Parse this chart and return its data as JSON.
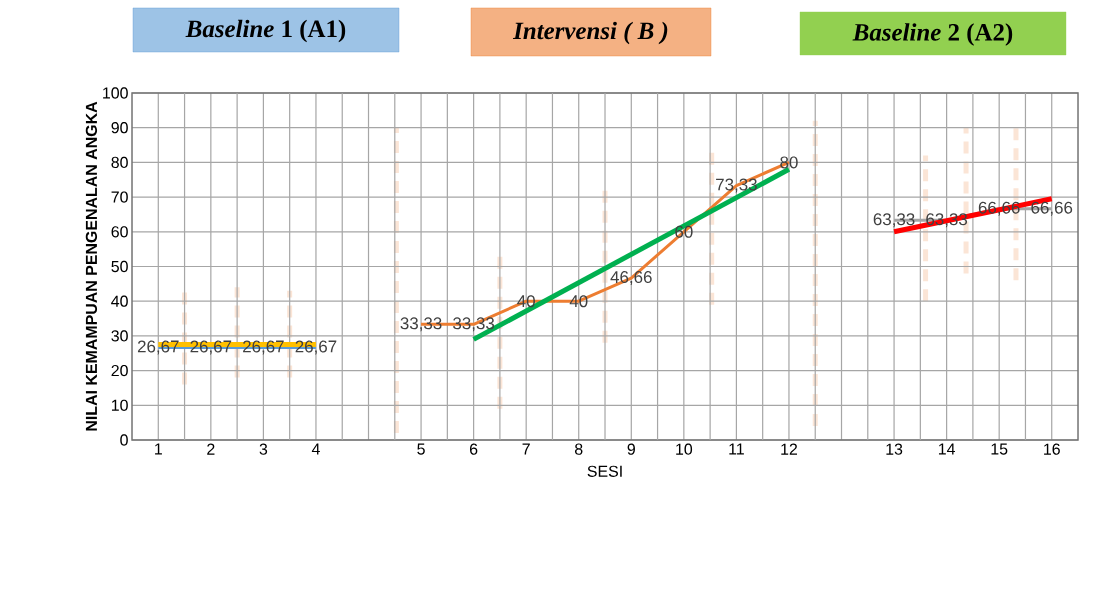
{
  "chart_data": {
    "type": "line",
    "xlabel": "SESI",
    "ylabel": "NILAI KEMAMPUAN PENGENALAN ANGKA",
    "annotations": [
      "*Baseline* 1 (A1)",
      "Intervensi ( B )",
      "*Baseline* 2 (A2)"
    ],
    "categories": [
      "1",
      "2",
      "3",
      "4",
      null,
      "5",
      "6",
      "7",
      "8",
      "9",
      "10",
      "11",
      "12",
      null,
      "13",
      "14",
      "15",
      "16"
    ],
    "ylim": [
      0,
      100
    ],
    "yticks": [
      0,
      10,
      20,
      30,
      40,
      50,
      60,
      70,
      80,
      90,
      100
    ],
    "grid": true,
    "marker": "none",
    "series": [
      {
        "color": "#5b9bd5",
        "values": [
          26.67,
          26.67,
          26.67,
          26.67,
          null,
          null,
          null,
          null,
          null,
          null,
          null,
          null,
          null,
          null,
          null,
          null,
          null,
          null
        ],
        "value_labels": [
          "26,67",
          "26,67",
          "26,67",
          "26,67",
          null,
          null,
          null,
          null,
          null,
          null,
          null,
          null,
          null,
          null,
          null,
          null,
          null,
          null
        ]
      },
      {
        "color": "#ed7d31",
        "values": [
          null,
          null,
          null,
          null,
          null,
          33.33,
          33.33,
          40,
          40,
          46.66,
          60,
          73.33,
          80,
          null,
          null,
          null,
          null,
          null
        ],
        "value_labels": [
          null,
          null,
          null,
          null,
          null,
          "33,33",
          "33,33",
          "40",
          "40",
          "46,66",
          "60",
          "73,33",
          "80",
          null,
          null,
          null,
          null,
          null
        ]
      },
      {
        "color": "#a5a5a5",
        "values": [
          null,
          null,
          null,
          null,
          null,
          null,
          null,
          null,
          null,
          null,
          null,
          null,
          null,
          null,
          63.33,
          63.33,
          66.66,
          66.66
        ],
        "value_labels": [
          null,
          null,
          null,
          null,
          null,
          null,
          null,
          null,
          null,
          null,
          null,
          null,
          null,
          null,
          "63,33",
          "63,33",
          "66,66",
          "66,66"
        ]
      },
      {
        "color": "#ffc000",
        "values": [
          27.5,
          null,
          null,
          27.5,
          null,
          null,
          null,
          null,
          null,
          null,
          null,
          null,
          null,
          null,
          null,
          null,
          null,
          null
        ]
      },
      {
        "color": "#00b050",
        "values": [
          null,
          null,
          null,
          null,
          null,
          null,
          29,
          null,
          null,
          null,
          null,
          null,
          78,
          null,
          null,
          null,
          null,
          null
        ]
      },
      {
        "color": "#ff0000",
        "values": [
          null,
          null,
          null,
          null,
          null,
          null,
          null,
          null,
          null,
          null,
          null,
          null,
          null,
          null,
          60,
          null,
          null,
          69.5
        ]
      }
    ]
  }
}
